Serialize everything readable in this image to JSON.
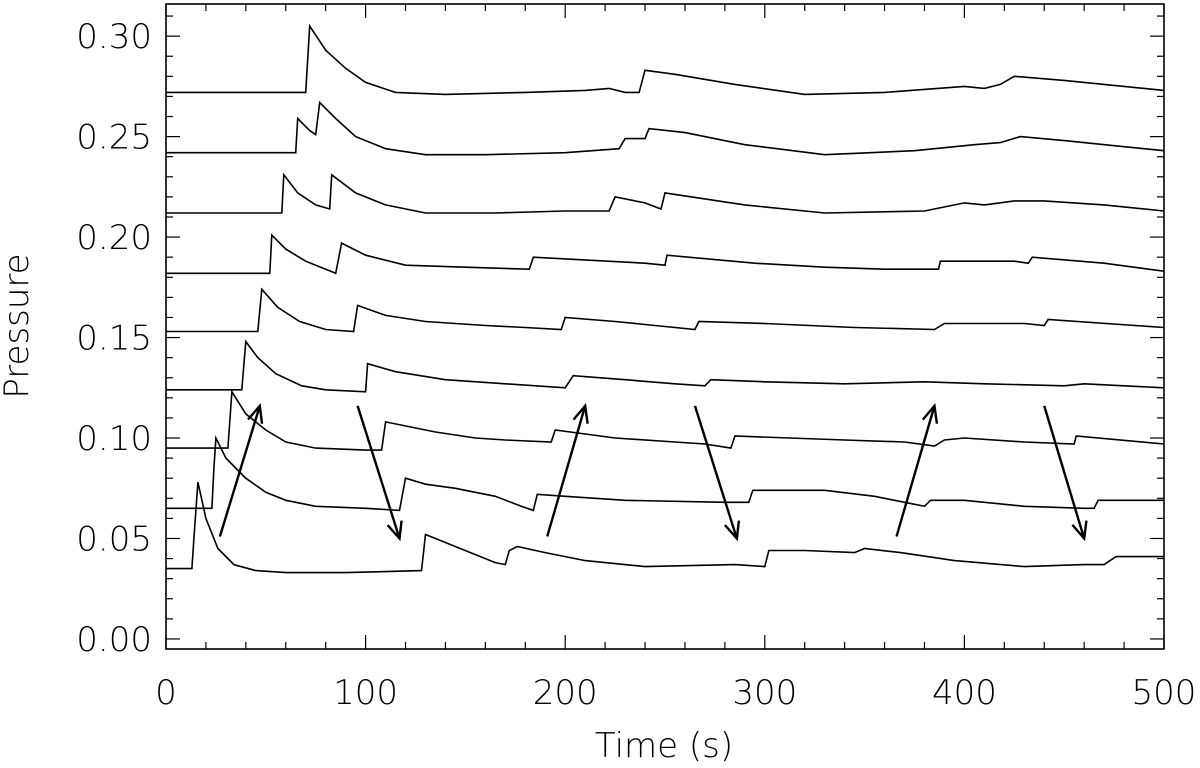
{
  "chart_data": {
    "type": "line",
    "title": "",
    "xlabel": "Time (s)",
    "ylabel": "Pressure",
    "xlim": [
      0,
      500
    ],
    "ylim": [
      -0.005,
      0.316
    ],
    "x_ticks": [
      0,
      100,
      200,
      300,
      400,
      500
    ],
    "x_tick_labels": [
      "0",
      "100",
      "200",
      "300",
      "400",
      "500"
    ],
    "y_ticks": [
      0.0,
      0.05,
      0.1,
      0.15,
      0.2,
      0.25,
      0.3
    ],
    "y_tick_labels": [
      "0.00",
      "0.05",
      "0.10",
      "0.15",
      "0.20",
      "0.25",
      "0.30"
    ],
    "grid": false,
    "legend": "none",
    "series": [
      {
        "points": [
          [
            0,
            0.035
          ],
          [
            13,
            0.035
          ],
          [
            14,
            0.05
          ],
          [
            16,
            0.078
          ],
          [
            20,
            0.06
          ],
          [
            26,
            0.045
          ],
          [
            34,
            0.037
          ],
          [
            45,
            0.034
          ],
          [
            60,
            0.033
          ],
          [
            90,
            0.033
          ],
          [
            128,
            0.034
          ],
          [
            130,
            0.052
          ],
          [
            140,
            0.048
          ],
          [
            155,
            0.042
          ],
          [
            165,
            0.038
          ],
          [
            170,
            0.037
          ],
          [
            172,
            0.044
          ],
          [
            176,
            0.046
          ],
          [
            190,
            0.043
          ],
          [
            210,
            0.039
          ],
          [
            240,
            0.036
          ],
          [
            285,
            0.037
          ],
          [
            300,
            0.036
          ],
          [
            302,
            0.044
          ],
          [
            320,
            0.044
          ],
          [
            345,
            0.043
          ],
          [
            350,
            0.045
          ],
          [
            368,
            0.043
          ],
          [
            395,
            0.039
          ],
          [
            430,
            0.036
          ],
          [
            460,
            0.037
          ],
          [
            470,
            0.037
          ],
          [
            476,
            0.041
          ],
          [
            500,
            0.041
          ]
        ]
      },
      {
        "points": [
          [
            0,
            0.065
          ],
          [
            23,
            0.065
          ],
          [
            24,
            0.085
          ],
          [
            25,
            0.1
          ],
          [
            30,
            0.09
          ],
          [
            40,
            0.08
          ],
          [
            50,
            0.073
          ],
          [
            60,
            0.069
          ],
          [
            75,
            0.066
          ],
          [
            100,
            0.065
          ],
          [
            117,
            0.064
          ],
          [
            120,
            0.08
          ],
          [
            130,
            0.077
          ],
          [
            145,
            0.075
          ],
          [
            165,
            0.071
          ],
          [
            178,
            0.066
          ],
          [
            184,
            0.064
          ],
          [
            186,
            0.072
          ],
          [
            200,
            0.071
          ],
          [
            230,
            0.069
          ],
          [
            280,
            0.068
          ],
          [
            292,
            0.068
          ],
          [
            294,
            0.074
          ],
          [
            330,
            0.074
          ],
          [
            355,
            0.071
          ],
          [
            370,
            0.068
          ],
          [
            380,
            0.066
          ],
          [
            383,
            0.069
          ],
          [
            400,
            0.069
          ],
          [
            430,
            0.066
          ],
          [
            460,
            0.065
          ],
          [
            465,
            0.065
          ],
          [
            467,
            0.069
          ],
          [
            500,
            0.069
          ]
        ]
      },
      {
        "points": [
          [
            0,
            0.095
          ],
          [
            31,
            0.095
          ],
          [
            33,
            0.123
          ],
          [
            40,
            0.112
          ],
          [
            50,
            0.104
          ],
          [
            60,
            0.098
          ],
          [
            75,
            0.095
          ],
          [
            100,
            0.094
          ],
          [
            108,
            0.094
          ],
          [
            110,
            0.108
          ],
          [
            135,
            0.103
          ],
          [
            155,
            0.1
          ],
          [
            170,
            0.099
          ],
          [
            193,
            0.098
          ],
          [
            195,
            0.104
          ],
          [
            225,
            0.1
          ],
          [
            255,
            0.098
          ],
          [
            270,
            0.097
          ],
          [
            283,
            0.095
          ],
          [
            285,
            0.101
          ],
          [
            340,
            0.099
          ],
          [
            370,
            0.098
          ],
          [
            385,
            0.096
          ],
          [
            390,
            0.099
          ],
          [
            400,
            0.1
          ],
          [
            430,
            0.098
          ],
          [
            455,
            0.097
          ],
          [
            456,
            0.101
          ],
          [
            500,
            0.097
          ]
        ]
      },
      {
        "points": [
          [
            0,
            0.124
          ],
          [
            38,
            0.124
          ],
          [
            40,
            0.148
          ],
          [
            46,
            0.14
          ],
          [
            55,
            0.132
          ],
          [
            68,
            0.126
          ],
          [
            80,
            0.124
          ],
          [
            100,
            0.123
          ],
          [
            101,
            0.137
          ],
          [
            115,
            0.133
          ],
          [
            140,
            0.129
          ],
          [
            170,
            0.127
          ],
          [
            200,
            0.125
          ],
          [
            204,
            0.131
          ],
          [
            230,
            0.129
          ],
          [
            255,
            0.127
          ],
          [
            270,
            0.126
          ],
          [
            273,
            0.129
          ],
          [
            300,
            0.128
          ],
          [
            340,
            0.127
          ],
          [
            380,
            0.128
          ],
          [
            410,
            0.127
          ],
          [
            450,
            0.126
          ],
          [
            460,
            0.127
          ],
          [
            500,
            0.125
          ]
        ]
      },
      {
        "points": [
          [
            0,
            0.153
          ],
          [
            46,
            0.153
          ],
          [
            48,
            0.174
          ],
          [
            56,
            0.165
          ],
          [
            67,
            0.158
          ],
          [
            80,
            0.154
          ],
          [
            94,
            0.153
          ],
          [
            96,
            0.166
          ],
          [
            110,
            0.161
          ],
          [
            130,
            0.158
          ],
          [
            160,
            0.156
          ],
          [
            180,
            0.155
          ],
          [
            198,
            0.154
          ],
          [
            200,
            0.16
          ],
          [
            225,
            0.158
          ],
          [
            255,
            0.155
          ],
          [
            265,
            0.154
          ],
          [
            267,
            0.158
          ],
          [
            300,
            0.157
          ],
          [
            345,
            0.155
          ],
          [
            385,
            0.154
          ],
          [
            390,
            0.157
          ],
          [
            430,
            0.157
          ],
          [
            440,
            0.156
          ],
          [
            442,
            0.159
          ],
          [
            500,
            0.155
          ]
        ]
      },
      {
        "points": [
          [
            0,
            0.182
          ],
          [
            52,
            0.182
          ],
          [
            53,
            0.201
          ],
          [
            60,
            0.194
          ],
          [
            70,
            0.188
          ],
          [
            85,
            0.182
          ],
          [
            88,
            0.197
          ],
          [
            100,
            0.191
          ],
          [
            120,
            0.186
          ],
          [
            150,
            0.185
          ],
          [
            182,
            0.184
          ],
          [
            184,
            0.19
          ],
          [
            240,
            0.187
          ],
          [
            250,
            0.186
          ],
          [
            251,
            0.191
          ],
          [
            295,
            0.187
          ],
          [
            330,
            0.185
          ],
          [
            360,
            0.184
          ],
          [
            387,
            0.184
          ],
          [
            388,
            0.188
          ],
          [
            425,
            0.188
          ],
          [
            432,
            0.187
          ],
          [
            434,
            0.19
          ],
          [
            470,
            0.187
          ],
          [
            500,
            0.183
          ]
        ]
      },
      {
        "points": [
          [
            0,
            0.212
          ],
          [
            58,
            0.212
          ],
          [
            59,
            0.231
          ],
          [
            66,
            0.222
          ],
          [
            75,
            0.216
          ],
          [
            82,
            0.214
          ],
          [
            83,
            0.231
          ],
          [
            95,
            0.222
          ],
          [
            110,
            0.216
          ],
          [
            130,
            0.212
          ],
          [
            165,
            0.212
          ],
          [
            200,
            0.213
          ],
          [
            222,
            0.213
          ],
          [
            225,
            0.22
          ],
          [
            240,
            0.217
          ],
          [
            248,
            0.214
          ],
          [
            250,
            0.222
          ],
          [
            290,
            0.216
          ],
          [
            330,
            0.212
          ],
          [
            380,
            0.213
          ],
          [
            400,
            0.217
          ],
          [
            410,
            0.216
          ],
          [
            425,
            0.218
          ],
          [
            440,
            0.218
          ],
          [
            470,
            0.216
          ],
          [
            500,
            0.213
          ]
        ]
      },
      {
        "points": [
          [
            0,
            0.242
          ],
          [
            65,
            0.242
          ],
          [
            66,
            0.259
          ],
          [
            72,
            0.253
          ],
          [
            75,
            0.251
          ],
          [
            77,
            0.267
          ],
          [
            85,
            0.259
          ],
          [
            95,
            0.25
          ],
          [
            110,
            0.244
          ],
          [
            130,
            0.241
          ],
          [
            160,
            0.241
          ],
          [
            200,
            0.242
          ],
          [
            227,
            0.244
          ],
          [
            230,
            0.249
          ],
          [
            240,
            0.249
          ],
          [
            242,
            0.254
          ],
          [
            260,
            0.252
          ],
          [
            290,
            0.246
          ],
          [
            330,
            0.241
          ],
          [
            375,
            0.243
          ],
          [
            405,
            0.246
          ],
          [
            418,
            0.247
          ],
          [
            428,
            0.25
          ],
          [
            450,
            0.248
          ],
          [
            480,
            0.245
          ],
          [
            500,
            0.243
          ]
        ]
      },
      {
        "points": [
          [
            0,
            0.272
          ],
          [
            70,
            0.272
          ],
          [
            72,
            0.305
          ],
          [
            80,
            0.293
          ],
          [
            90,
            0.284
          ],
          [
            100,
            0.277
          ],
          [
            115,
            0.272
          ],
          [
            140,
            0.271
          ],
          [
            180,
            0.272
          ],
          [
            210,
            0.273
          ],
          [
            222,
            0.274
          ],
          [
            230,
            0.272
          ],
          [
            237,
            0.272
          ],
          [
            240,
            0.283
          ],
          [
            255,
            0.281
          ],
          [
            285,
            0.276
          ],
          [
            320,
            0.271
          ],
          [
            360,
            0.272
          ],
          [
            400,
            0.275
          ],
          [
            410,
            0.274
          ],
          [
            418,
            0.276
          ],
          [
            425,
            0.28
          ],
          [
            450,
            0.278
          ],
          [
            500,
            0.273
          ]
        ]
      }
    ],
    "annotations": [
      {
        "type": "arrow",
        "from": [
          27,
          0.051
        ],
        "to": [
          47,
          0.116
        ]
      },
      {
        "type": "arrow",
        "from": [
          96,
          0.116
        ],
        "to": [
          117,
          0.05
        ]
      },
      {
        "type": "arrow",
        "from": [
          191,
          0.051
        ],
        "to": [
          210,
          0.116
        ]
      },
      {
        "type": "arrow",
        "from": [
          265,
          0.116
        ],
        "to": [
          286,
          0.05
        ]
      },
      {
        "type": "arrow",
        "from": [
          366,
          0.051
        ],
        "to": [
          385,
          0.116
        ]
      },
      {
        "type": "arrow",
        "from": [
          440,
          0.116
        ],
        "to": [
          460,
          0.05
        ]
      }
    ]
  }
}
